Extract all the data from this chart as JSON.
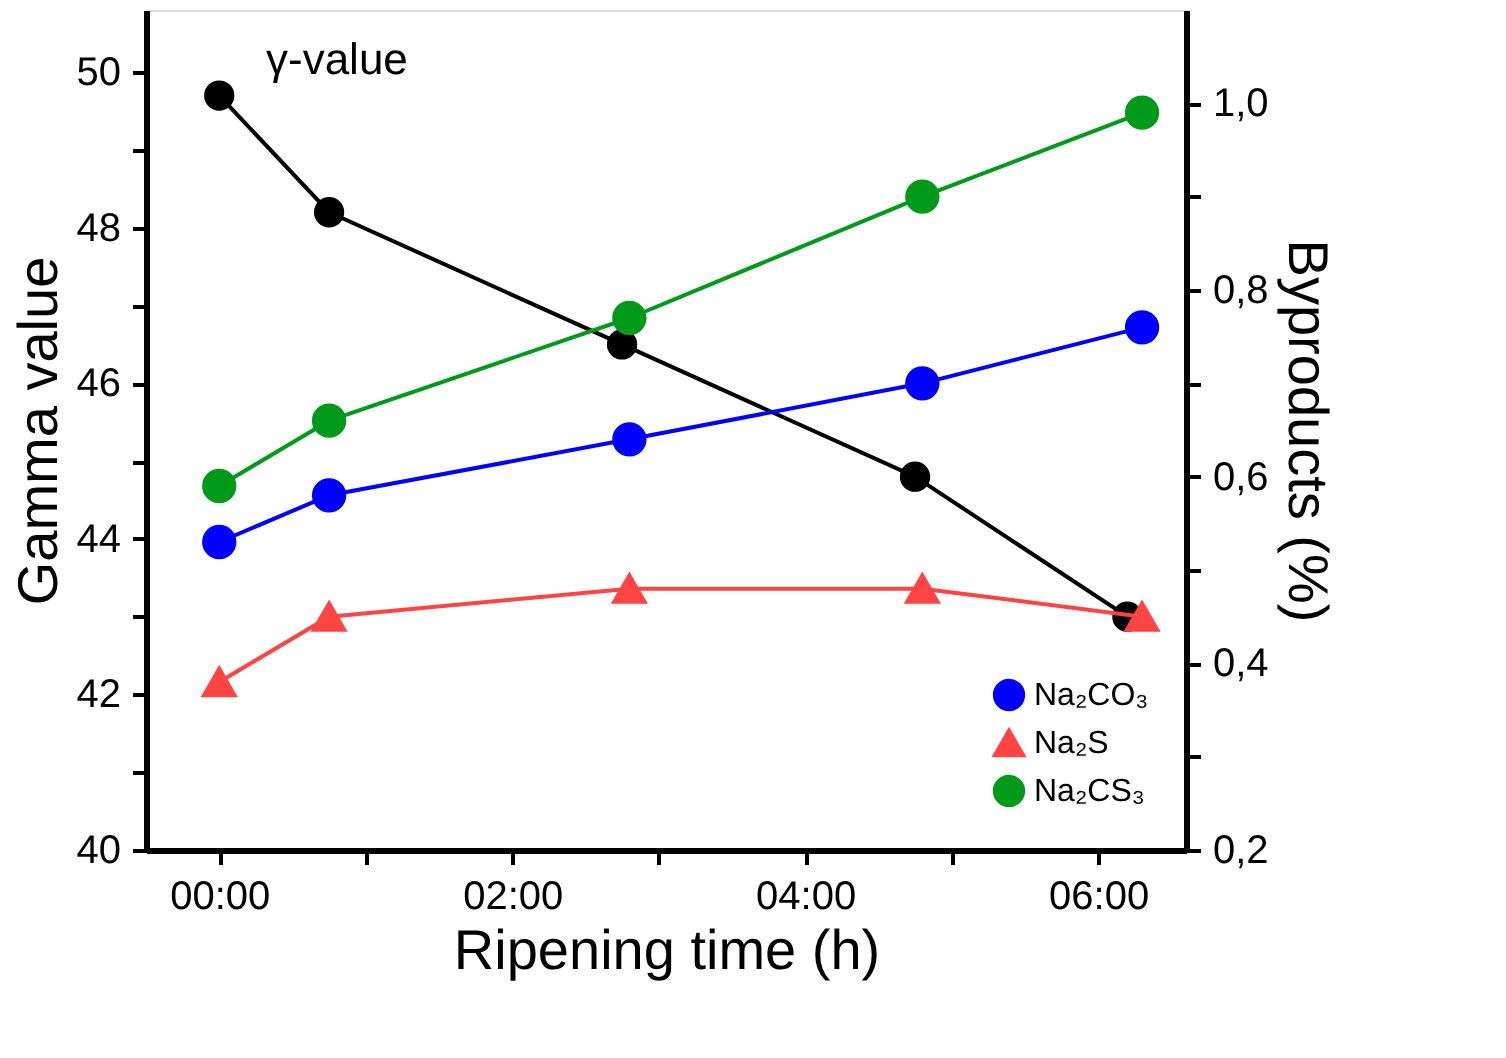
{
  "chart_data": {
    "type": "line",
    "xlabel": "Ripening time (h)",
    "ylabel": "Gamma value",
    "y2label": "Byproducts (%)",
    "xlim": [
      -0.5,
      6.6
    ],
    "xticks": [
      {
        "value": 0,
        "label": "00:00"
      },
      {
        "value": 1,
        "label": null
      },
      {
        "value": 2,
        "label": "02:00"
      },
      {
        "value": 3,
        "label": null
      },
      {
        "value": 4,
        "label": "04:00"
      },
      {
        "value": 5,
        "label": null
      },
      {
        "value": 6,
        "label": "06:00"
      }
    ],
    "ylim": [
      40,
      50.8
    ],
    "yticks": [
      40,
      {
        "value": 41,
        "label": null
      },
      42,
      {
        "value": 43,
        "label": null
      },
      44,
      {
        "value": 45,
        "label": null
      },
      46,
      {
        "value": 47,
        "label": null
      },
      48,
      {
        "value": 49,
        "label": null
      },
      50
    ],
    "y2lim": [
      0.2,
      1.1
    ],
    "y2ticks": [
      {
        "value": 0.2,
        "label": "0,2"
      },
      {
        "value": 0.3,
        "label": null
      },
      {
        "value": 0.4,
        "label": "0,4"
      },
      {
        "value": 0.5,
        "label": null
      },
      {
        "value": 0.6,
        "label": "0,6"
      },
      {
        "value": 0.7,
        "label": null
      },
      {
        "value": 0.8,
        "label": "0,8"
      },
      {
        "value": 0.9,
        "label": null
      },
      {
        "value": 1.0,
        "label": "1,0"
      }
    ],
    "grid": false,
    "legend": "bottom right",
    "line_style": "solid",
    "series": [
      {
        "name": "γ-value",
        "color": "#000000",
        "marker": "circle",
        "x": [
          0,
          0.75,
          2.75,
          4.75,
          6.2
        ],
        "values": [
          49.7,
          48.2,
          46.5,
          44.8,
          43.0
        ]
      },
      {
        "name": "Na₂CO₃",
        "color": "#0000ff",
        "marker": "circle",
        "axis": "y2",
        "x": [
          0,
          0.75,
          2.8,
          4.8,
          6.3
        ],
        "values": [
          0.53,
          0.58,
          0.64,
          0.7,
          0.76
        ]
      },
      {
        "name": "Na₂S",
        "color": "#ff4444",
        "marker": "triangle",
        "axis": "y2",
        "x": [
          0,
          0.75,
          2.8,
          4.8,
          6.3
        ],
        "values": [
          0.38,
          0.45,
          0.48,
          0.48,
          0.45
        ]
      },
      {
        "name": "Na₂CS₃",
        "color": "#009a1a",
        "marker": "circle",
        "axis": "y2",
        "x": [
          0,
          0.75,
          2.8,
          4.8,
          6.3
        ],
        "values": [
          0.59,
          0.66,
          0.77,
          0.9,
          0.99
        ]
      }
    ]
  }
}
